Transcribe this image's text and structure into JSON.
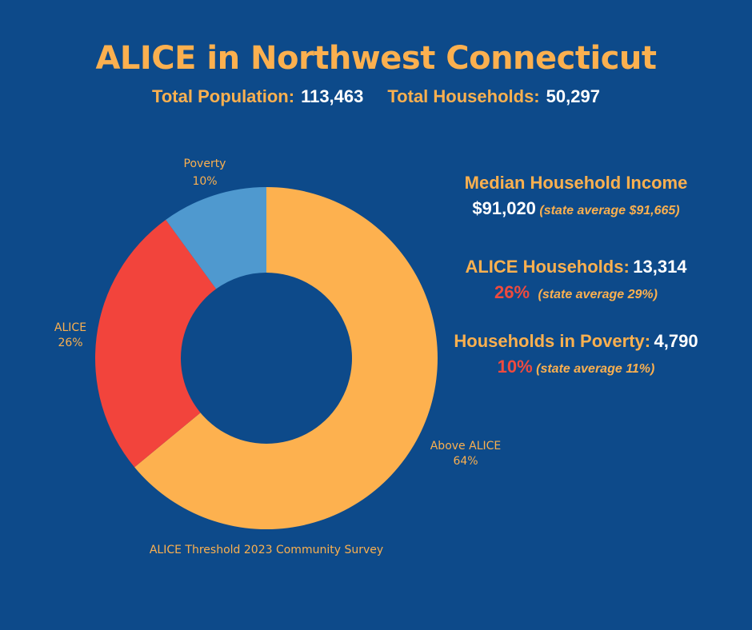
{
  "header": {
    "title": "ALICE in Northwest Connecticut",
    "population_label": "Total Population:",
    "population_value": "113,463",
    "households_label": "Total Households:",
    "households_value": "50,297"
  },
  "stats": {
    "median_income_label": "Median Household Income",
    "median_income_value": "$91,020",
    "median_income_state": "(state average $91,665)",
    "alice_label": "ALICE Households:",
    "alice_value": "13,314",
    "alice_pct": "26%",
    "alice_state": "(state average 29%)",
    "poverty_label": "Households in Poverty:",
    "poverty_value": "4,790",
    "poverty_pct": "10%",
    "poverty_state": "(state average 11%)"
  },
  "chart_data": {
    "type": "pie",
    "donut": true,
    "source": "ALICE Threshold 2023 Community Survey",
    "slices": [
      {
        "label": "Above ALICE",
        "pct_label": "64%",
        "value": 64,
        "color": "#fdb14f"
      },
      {
        "label": "ALICE",
        "pct_label": "26%",
        "value": 26,
        "color": "#f2443c"
      },
      {
        "label": "Poverty",
        "pct_label": "10%",
        "value": 10,
        "color": "#4f99cf"
      }
    ]
  }
}
